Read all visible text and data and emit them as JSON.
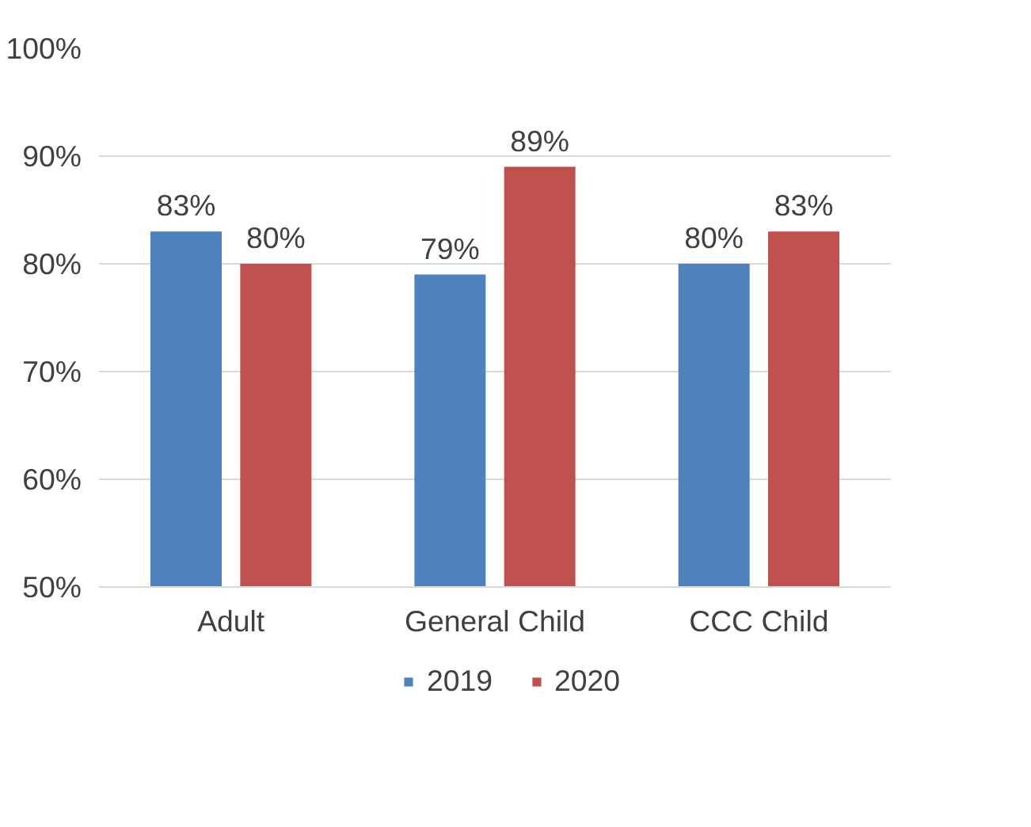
{
  "chart_data": {
    "type": "bar",
    "categories": [
      "Adult",
      "General Child",
      "CCC Child"
    ],
    "series": [
      {
        "name": "2019",
        "color": "#4f81bd",
        "values": [
          83,
          79,
          80
        ],
        "value_labels": [
          "83%",
          "79%",
          "80%"
        ]
      },
      {
        "name": "2020",
        "color": "#c0504d",
        "values": [
          80,
          89,
          83
        ],
        "value_labels": [
          "80%",
          "89%",
          "83%"
        ]
      }
    ],
    "ylim": [
      50,
      100
    ],
    "yticks": [
      {
        "value": 50,
        "label": "50%"
      },
      {
        "value": 60,
        "label": "60%"
      },
      {
        "value": 70,
        "label": "70%"
      },
      {
        "value": 80,
        "label": "80%"
      },
      {
        "value": 90,
        "label": "90%"
      },
      {
        "value": 100,
        "label": "100%"
      }
    ],
    "grid": "y",
    "legend": "bottom"
  }
}
